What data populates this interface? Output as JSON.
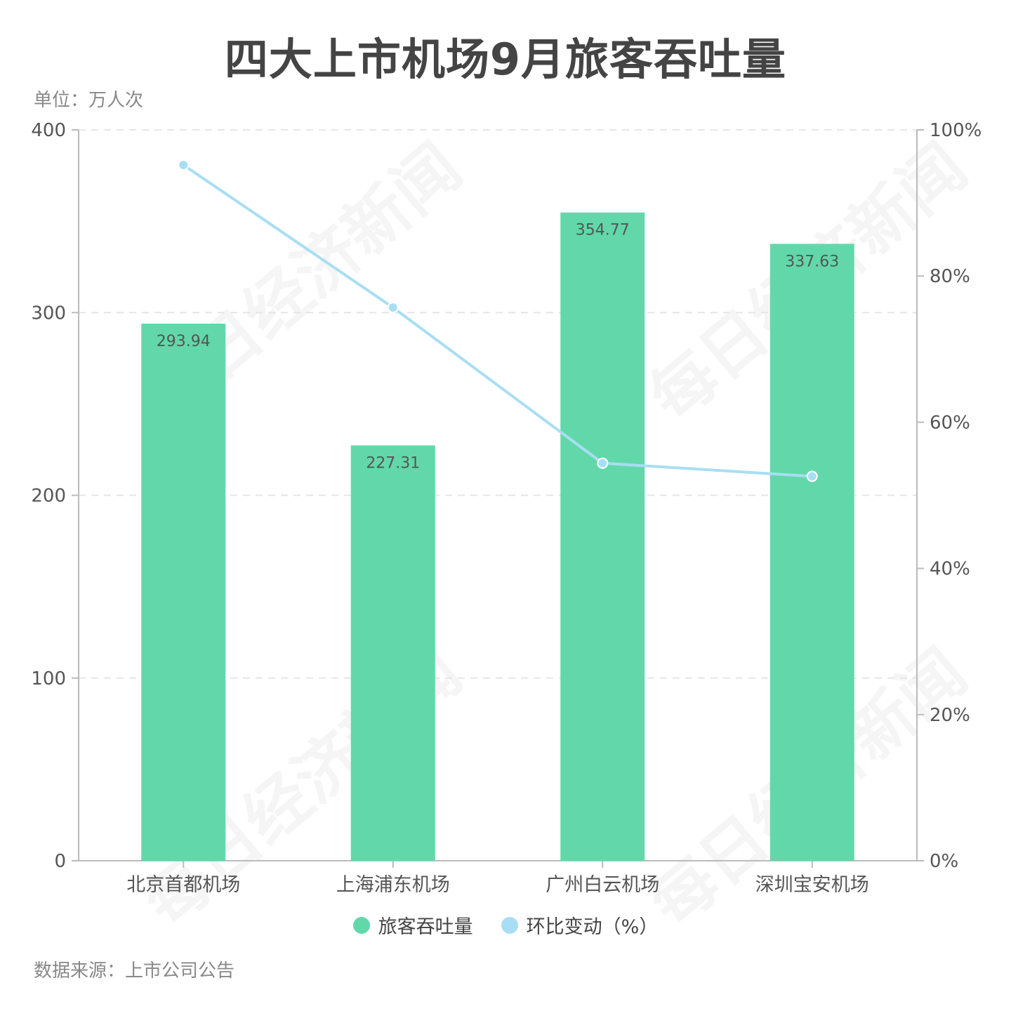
{
  "title": "四大上市机场9月旅客吞吐量",
  "unit_label": "单位：万人次",
  "source_label": "数据来源：上市公司公告",
  "watermark": "每日经济新闻",
  "colors": {
    "bar": "#62d8aa",
    "line": "#a8def3",
    "axis": "#bbbbbb",
    "grid": "#e6e6e6",
    "text": "#555555"
  },
  "chart_data": {
    "type": "bar",
    "categories": [
      "北京首都机场",
      "上海浦东机场",
      "广州白云机场",
      "深圳宝安机场"
    ],
    "series": [
      {
        "name": "旅客吞吐量",
        "type": "bar",
        "axis": "left",
        "values": [
          293.94,
          227.31,
          354.77,
          337.63
        ]
      },
      {
        "name": "环比变动（%）",
        "type": "line",
        "axis": "right",
        "values": [
          95.2,
          75.7,
          54.4,
          52.6
        ]
      }
    ],
    "y_left": {
      "ylim": [
        0,
        400
      ],
      "ticks": [
        "0",
        "100",
        "200",
        "300",
        "400"
      ]
    },
    "y_right": {
      "ylim": [
        0,
        100
      ],
      "ticks": [
        "0%",
        "20%",
        "40%",
        "60%",
        "80%",
        "100%"
      ]
    },
    "grid": true,
    "legend_position": "bottom"
  }
}
